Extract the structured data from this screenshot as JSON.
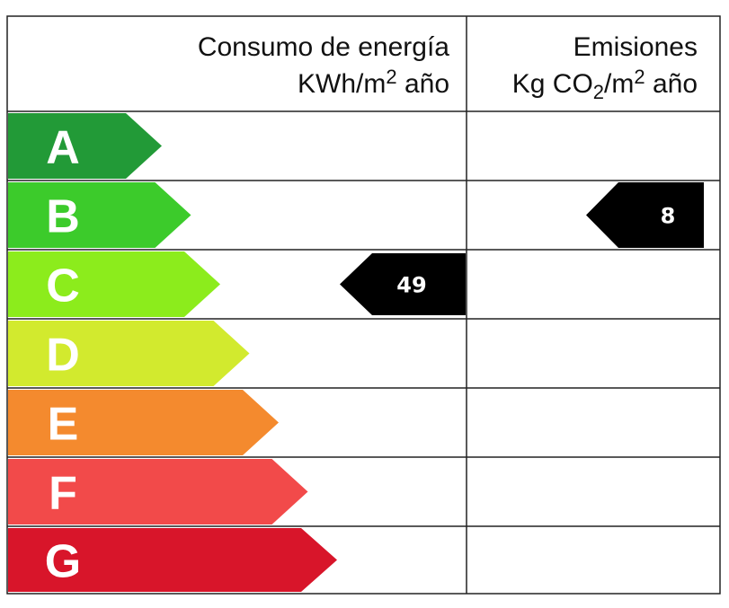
{
  "header": {
    "consumption": {
      "line1": "Consumo de energía",
      "line2": [
        "KWh/m",
        "2",
        " año"
      ]
    },
    "emissions": {
      "line1": "Emisiones",
      "line2": [
        "Kg CO",
        "2",
        "/m",
        "2",
        " año"
      ]
    }
  },
  "rows": [
    {
      "letter": "A",
      "color": "#229a37",
      "consumption": null,
      "emissions": null
    },
    {
      "letter": "B",
      "color": "#3ccb2b",
      "consumption": null,
      "emissions": 8
    },
    {
      "letter": "C",
      "color": "#8cec1c",
      "consumption": 49,
      "emissions": null
    },
    {
      "letter": "D",
      "color": "#d2ea2e",
      "consumption": null,
      "emissions": null
    },
    {
      "letter": "E",
      "color": "#f48a2e",
      "consumption": null,
      "emissions": null
    },
    {
      "letter": "F",
      "color": "#f24a4a",
      "consumption": null,
      "emissions": null
    },
    {
      "letter": "G",
      "color": "#d8152a",
      "consumption": null,
      "emissions": null
    }
  ]
}
